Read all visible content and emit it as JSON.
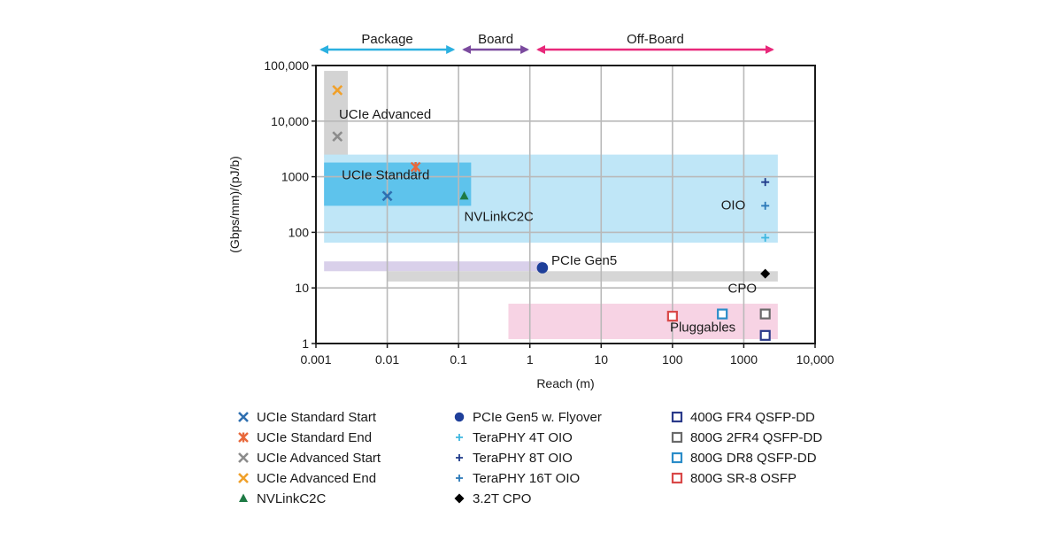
{
  "chart_data": {
    "type": "scatter",
    "title": "",
    "xlabel": "Reach (m)",
    "ylabel": "(Gbps/mm)/(pJ/b)",
    "x_scale": "log",
    "y_scale": "log",
    "xlim": [
      0.001,
      10000
    ],
    "ylim": [
      1,
      100000
    ],
    "x_ticks": [
      {
        "value": 0.001,
        "label": "0.001"
      },
      {
        "value": 0.01,
        "label": "0.01"
      },
      {
        "value": 0.1,
        "label": "0.1"
      },
      {
        "value": 1,
        "label": "1"
      },
      {
        "value": 10,
        "label": "10"
      },
      {
        "value": 100,
        "label": "100"
      },
      {
        "value": 1000,
        "label": "1000"
      },
      {
        "value": 10000,
        "label": "10,000"
      }
    ],
    "y_ticks": [
      {
        "value": 1,
        "label": "1"
      },
      {
        "value": 10,
        "label": "10"
      },
      {
        "value": 100,
        "label": "100"
      },
      {
        "value": 1000,
        "label": "1000"
      },
      {
        "value": 10000,
        "label": "10,000"
      },
      {
        "value": 100000,
        "label": "100,000"
      }
    ],
    "grid": true,
    "legend_position": "bottom",
    "reach_regions": [
      {
        "label": "Package",
        "x_start": 0.001,
        "x_end": 0.1,
        "color": "#2bb0e0"
      },
      {
        "label": "Board",
        "x_start": 0.1,
        "x_end": 1.1,
        "color": "#7b4a9e"
      },
      {
        "label": "Off-Board",
        "x_start": 1.1,
        "x_end": 3000,
        "color": "#e8287a"
      }
    ],
    "bands": [
      {
        "name": "ucie-advanced-band",
        "x": [
          0.0013,
          0.0028
        ],
        "y": [
          2200,
          80000
        ],
        "color": "#d3d3d3"
      },
      {
        "name": "oio-band",
        "x": [
          0.0013,
          3000
        ],
        "y": [
          65,
          2500
        ],
        "color": "#bfe6f7"
      },
      {
        "name": "ucie-standard-band",
        "x": [
          0.0013,
          0.15
        ],
        "y": [
          300,
          1800
        ],
        "color": "#5ec3ec"
      },
      {
        "name": "pcie-band",
        "x": [
          0.0013,
          1.5
        ],
        "y": [
          20,
          30
        ],
        "color": "#d9d0ea"
      },
      {
        "name": "cpo-band",
        "x": [
          0.01,
          3000
        ],
        "y": [
          13,
          20
        ],
        "color": "#d6d6d6"
      },
      {
        "name": "pluggables-band",
        "x": [
          0.5,
          3000
        ],
        "y": [
          1.2,
          5.2
        ],
        "color": "#f7d3e4"
      }
    ],
    "annotations": [
      {
        "text": "UCIe Advanced",
        "x": 0.0021,
        "y": 11000
      },
      {
        "text": "UCIe Standard",
        "x": 0.0023,
        "y": 900
      },
      {
        "text": "NVLinkC2C",
        "x": 0.12,
        "y": 160
      },
      {
        "text": "OIO",
        "x": 480,
        "y": 260
      },
      {
        "text": "PCIe Gen5",
        "x": 2.0,
        "y": 26
      },
      {
        "text": "CPO",
        "x": 600,
        "y": 8.3
      },
      {
        "text": "Pluggables",
        "x": 92,
        "y": 1.65
      }
    ],
    "series": [
      {
        "name": "UCIe Standard Start",
        "marker": "x",
        "color": "#2e6fb0",
        "points": [
          {
            "x": 0.01,
            "y": 450
          }
        ]
      },
      {
        "name": "UCIe Standard End",
        "marker": "asterisk",
        "color": "#e8693c",
        "points": [
          {
            "x": 0.025,
            "y": 1500
          }
        ]
      },
      {
        "name": "UCIe Advanced Start",
        "marker": "x",
        "color": "#8c8c8c",
        "points": [
          {
            "x": 0.002,
            "y": 5300
          }
        ]
      },
      {
        "name": "UCIe Advanced End",
        "marker": "x",
        "color": "#f0a02a",
        "points": [
          {
            "x": 0.002,
            "y": 36000
          }
        ]
      },
      {
        "name": "NVLinkC2C",
        "marker": "triangle",
        "color": "#1e7a45",
        "points": [
          {
            "x": 0.12,
            "y": 450
          }
        ]
      },
      {
        "name": "PCIe Gen5 w. Flyover",
        "marker": "circle",
        "color": "#1f3f9a",
        "points": [
          {
            "x": 1.5,
            "y": 23
          }
        ]
      },
      {
        "name": "TeraPHY 4T OIO",
        "marker": "plus",
        "color": "#3fb7e0",
        "points": [
          {
            "x": 2000,
            "y": 80
          }
        ]
      },
      {
        "name": "TeraPHY 8T OIO",
        "marker": "plus",
        "color": "#1f3a8a",
        "points": [
          {
            "x": 2000,
            "y": 800
          }
        ]
      },
      {
        "name": "TeraPHY 16T OIO",
        "marker": "plus",
        "color": "#2a78b8",
        "points": [
          {
            "x": 2000,
            "y": 300
          }
        ]
      },
      {
        "name": "3.2T CPO",
        "marker": "diamond",
        "color": "#000000",
        "points": [
          {
            "x": 2000,
            "y": 18
          }
        ]
      },
      {
        "name": "400G FR4 QSFP-DD",
        "marker": "square",
        "color": "#2a3a8a",
        "points": [
          {
            "x": 2000,
            "y": 1.4
          }
        ]
      },
      {
        "name": "800G 2FR4 QSFP-DD",
        "marker": "square",
        "color": "#6a6a6a",
        "points": [
          {
            "x": 2000,
            "y": 3.4
          }
        ]
      },
      {
        "name": "800G DR8 QSFP-DD",
        "marker": "square",
        "color": "#2a8cc8",
        "points": [
          {
            "x": 500,
            "y": 3.4
          }
        ]
      },
      {
        "name": "800G SR-8 OSFP",
        "marker": "square",
        "color": "#d94848",
        "points": [
          {
            "x": 100,
            "y": 3.1
          }
        ]
      }
    ],
    "legend_columns": [
      [
        "UCIe Standard Start",
        "UCIe Standard End",
        "UCIe Advanced Start",
        "UCIe Advanced End",
        "NVLinkC2C"
      ],
      [
        "PCIe Gen5 w. Flyover",
        "TeraPHY 4T OIO",
        "TeraPHY 8T OIO",
        "TeraPHY 16T OIO",
        "3.2T CPO"
      ],
      [
        "400G FR4 QSFP-DD",
        "800G 2FR4 QSFP-DD",
        "800G DR8 QSFP-DD",
        "800G SR-8 OSFP"
      ]
    ]
  }
}
